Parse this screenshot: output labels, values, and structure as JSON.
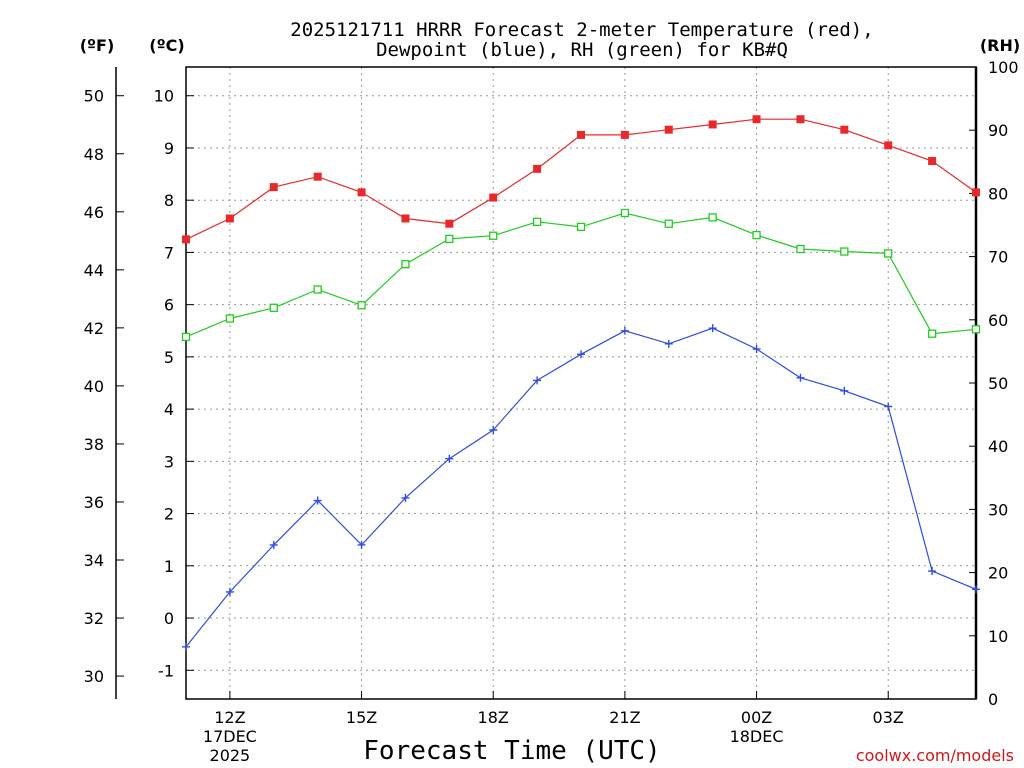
{
  "chart_data": {
    "type": "line",
    "title_line1": "2025121711 HRRR Forecast 2-meter Temperature (red),",
    "title_line2": "Dewpoint (blue), RH (green) for KB#Q",
    "xlabel": "Forecast Time (UTC)",
    "credit": "coolwx.com/models",
    "colors": {
      "temperature": "#e8292c",
      "dewpoint": "#2f4de0",
      "rh": "#22cc22",
      "grid": "#999999",
      "credit": "#d01818"
    },
    "left_unit_f": "(ºF)",
    "left_unit_c": "(ºC)",
    "right_unit": "(RH)",
    "x_ticks": [
      {
        "label": "12Z",
        "sub1": "17DEC",
        "sub2": "2025",
        "index": 1
      },
      {
        "label": "15Z",
        "sub1": "",
        "sub2": "",
        "index": 4
      },
      {
        "label": "18Z",
        "sub1": "",
        "sub2": "",
        "index": 7
      },
      {
        "label": "21Z",
        "sub1": "",
        "sub2": "",
        "index": 10
      },
      {
        "label": "00Z",
        "sub1": "18DEC",
        "sub2": "",
        "index": 13
      },
      {
        "label": "03Z",
        "sub1": "",
        "sub2": "",
        "index": 16
      }
    ],
    "xlim": [
      0,
      18
    ],
    "celsius_ylim": [
      -1.55,
      10.55
    ],
    "celsius_ticks": [
      "-1",
      "0",
      "1",
      "2",
      "3",
      "4",
      "5",
      "6",
      "7",
      "8",
      "9",
      "10"
    ],
    "fahrenheit_ticks": [
      "30",
      "32",
      "34",
      "36",
      "38",
      "40",
      "42",
      "44",
      "46",
      "48",
      "50"
    ],
    "rh_ylim": [
      0,
      100
    ],
    "rh_ticks": [
      "0",
      "10",
      "20",
      "30",
      "40",
      "50",
      "60",
      "70",
      "80",
      "90",
      "100"
    ],
    "series": [
      {
        "name": "Temperature",
        "unit": "C",
        "marker": "filled-square",
        "values": [
          7.25,
          7.65,
          8.25,
          8.45,
          8.15,
          7.65,
          7.55,
          8.05,
          8.6,
          9.25,
          9.25,
          9.35,
          9.45,
          9.55,
          9.55,
          9.35,
          9.05,
          8.75,
          8.15
        ]
      },
      {
        "name": "Dewpoint",
        "unit": "C",
        "marker": "plus",
        "values": [
          -0.55,
          0.5,
          1.4,
          2.25,
          1.4,
          2.3,
          3.05,
          3.6,
          4.55,
          5.05,
          5.5,
          5.25,
          5.55,
          5.15,
          4.6,
          4.35,
          4.05,
          0.9,
          0.55
        ]
      },
      {
        "name": "RH",
        "unit": "%",
        "marker": "open-square",
        "values": [
          57.3,
          60.2,
          61.9,
          64.8,
          62.3,
          68.8,
          72.8,
          73.3,
          75.5,
          74.7,
          76.9,
          75.2,
          76.2,
          73.4,
          71.2,
          70.8,
          70.5,
          57.8,
          58.5
        ]
      }
    ]
  }
}
